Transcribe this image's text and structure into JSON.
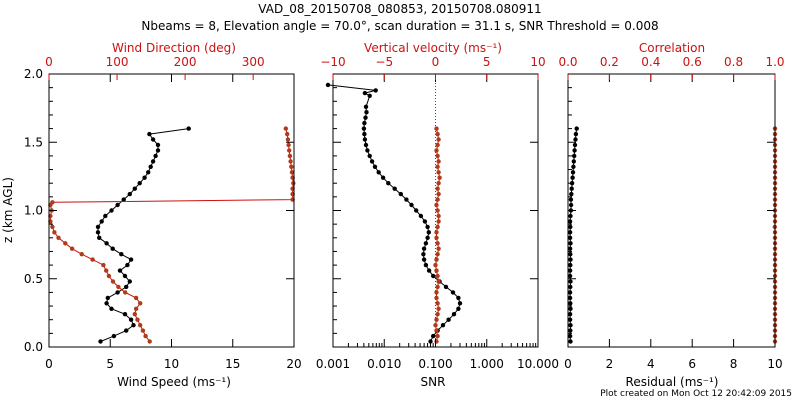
{
  "title": {
    "line1": "VAD_08_20150708_080853, 20150708.080911",
    "line2": "Nbeams = 8, Elevation angle = 70.0°, scan duration = 31.1 s, SNR Threshold = 0.008"
  },
  "footer": "Plot created on Mon Oct 12 20:42:09 2015",
  "colors": {
    "black": "#000000",
    "red": "#cc1111",
    "brown": "#b03a1a"
  },
  "chart_data": [
    {
      "type": "line",
      "panel": "wind",
      "ylabel": "z (km AGL)",
      "ylim": [
        0,
        2
      ],
      "yticks": [
        "0.0",
        "0.5",
        "1.0",
        "1.5",
        "2.0"
      ],
      "xlabel": "Wind Speed (ms⁻¹)",
      "xlim": [
        0,
        20
      ],
      "xticks": [
        "0",
        "5",
        "10",
        "15",
        "20"
      ],
      "top_label": "Wind Direction (deg)",
      "top_lim": [
        0,
        360
      ],
      "top_ticks": [
        "0",
        "100",
        "200",
        "300"
      ],
      "series": [
        {
          "name": "Wind Speed",
          "color": "#000000",
          "z": [
            0.04,
            0.08,
            0.12,
            0.16,
            0.2,
            0.24,
            0.28,
            0.32,
            0.36,
            0.4,
            0.44,
            0.48,
            0.52,
            0.56,
            0.6,
            0.64,
            0.68,
            0.72,
            0.76,
            0.8,
            0.84,
            0.88,
            0.92,
            0.96,
            1.0,
            1.04,
            1.08,
            1.12,
            1.16,
            1.2,
            1.24,
            1.28,
            1.32,
            1.36,
            1.4,
            1.44,
            1.48,
            1.52,
            1.56,
            1.6
          ],
          "values": [
            4.2,
            5.3,
            6.3,
            6.9,
            6.7,
            6.2,
            5.1,
            4.7,
            4.8,
            5.6,
            6.3,
            6.6,
            6.2,
            5.8,
            6.4,
            6.7,
            5.9,
            5.2,
            4.7,
            4.1,
            4.0,
            4.0,
            4.3,
            4.6,
            5.1,
            5.6,
            6.1,
            6.6,
            7.0,
            7.4,
            7.8,
            8.1,
            8.3,
            8.5,
            8.7,
            8.9,
            8.9,
            8.5,
            8.2,
            11.4
          ]
        },
        {
          "name": "Wind Direction",
          "color": "#b03a1a",
          "z": [
            0.04,
            0.08,
            0.12,
            0.16,
            0.2,
            0.24,
            0.28,
            0.32,
            0.36,
            0.4,
            0.44,
            0.48,
            0.52,
            0.56,
            0.6,
            0.64,
            0.68,
            0.72,
            0.76,
            0.8,
            0.84,
            0.88,
            0.92,
            0.96,
            1.0,
            1.04,
            1.06,
            1.08,
            1.12,
            1.16,
            1.2,
            1.24,
            1.28,
            1.32,
            1.36,
            1.4,
            1.44,
            1.48,
            1.52,
            1.56,
            1.6
          ],
          "values": [
            148,
            142,
            138,
            134,
            130,
            126,
            128,
            134,
            128,
            112,
            102,
            94,
            88,
            84,
            80,
            64,
            48,
            34,
            24,
            14,
            8,
            5,
            2,
            2,
            4,
            2,
            5,
            358,
            358,
            358,
            359,
            358,
            357,
            356,
            355,
            354,
            353,
            352,
            351,
            350,
            348
          ]
        }
      ]
    },
    {
      "type": "line",
      "panel": "vertical",
      "xlabel": "SNR",
      "xscale": "log",
      "xlim": [
        0.001,
        10
      ],
      "xticks": [
        "0.001",
        "0.010",
        "0.100",
        "1.000",
        "10.000"
      ],
      "top_label": "Vertical velocity (ms⁻¹)",
      "top_lim": [
        -10,
        10
      ],
      "top_ticks": [
        "−10",
        "−5",
        "0",
        "5",
        "10"
      ],
      "series": [
        {
          "name": "SNR",
          "color": "#000000",
          "z": [
            0.04,
            0.08,
            0.12,
            0.16,
            0.2,
            0.24,
            0.28,
            0.32,
            0.36,
            0.4,
            0.44,
            0.48,
            0.52,
            0.56,
            0.6,
            0.64,
            0.68,
            0.72,
            0.76,
            0.8,
            0.84,
            0.88,
            0.92,
            0.96,
            1.0,
            1.04,
            1.08,
            1.12,
            1.16,
            1.2,
            1.24,
            1.28,
            1.32,
            1.36,
            1.4,
            1.44,
            1.48,
            1.52,
            1.56,
            1.6,
            1.64,
            1.68,
            1.72,
            1.76,
            1.84,
            1.86,
            1.88,
            1.92
          ],
          "values": [
            0.08,
            0.09,
            0.11,
            0.14,
            0.18,
            0.23,
            0.28,
            0.3,
            0.28,
            0.22,
            0.16,
            0.12,
            0.09,
            0.075,
            0.065,
            0.06,
            0.058,
            0.06,
            0.065,
            0.07,
            0.074,
            0.07,
            0.062,
            0.052,
            0.042,
            0.034,
            0.027,
            0.021,
            0.016,
            0.012,
            0.0095,
            0.0078,
            0.0066,
            0.0058,
            0.0052,
            0.0047,
            0.0044,
            0.0042,
            0.0041,
            0.004,
            0.0041,
            0.0043,
            0.0045,
            0.0044,
            0.0052,
            0.0042,
            0.0068,
            0.0008
          ]
        },
        {
          "name": "Vertical velocity",
          "color": "#b03a1a",
          "z": [
            0.04,
            0.08,
            0.12,
            0.16,
            0.2,
            0.24,
            0.28,
            0.32,
            0.36,
            0.4,
            0.44,
            0.48,
            0.52,
            0.56,
            0.6,
            0.64,
            0.68,
            0.72,
            0.76,
            0.8,
            0.84,
            0.88,
            0.92,
            0.96,
            1.0,
            1.04,
            1.08,
            1.12,
            1.16,
            1.2,
            1.24,
            1.28,
            1.32,
            1.36,
            1.4,
            1.44,
            1.48,
            1.52,
            1.56,
            1.6
          ],
          "values": [
            0.1,
            0.2,
            0.1,
            0.0,
            0.1,
            0.2,
            0.3,
            0.2,
            0.1,
            0.1,
            0.2,
            0.3,
            0.2,
            0.1,
            0.0,
            0.1,
            0.2,
            0.3,
            0.2,
            0.1,
            0.1,
            0.2,
            0.3,
            0.3,
            0.2,
            0.1,
            0.2,
            0.3,
            0.2,
            0.3,
            0.4,
            0.3,
            0.2,
            0.3,
            0.2,
            0.1,
            0.2,
            0.3,
            0.2,
            0.1
          ]
        }
      ]
    },
    {
      "type": "line",
      "panel": "quality",
      "xlabel": "Residual (ms⁻¹)",
      "xlim": [
        0,
        10
      ],
      "xticks": [
        "0",
        "2",
        "4",
        "6",
        "8",
        "10"
      ],
      "top_label": "Correlation",
      "top_lim": [
        0,
        1
      ],
      "top_ticks": [
        "0.0",
        "0.2",
        "0.4",
        "0.6",
        "0.8",
        "1.0"
      ],
      "series": [
        {
          "name": "Residual",
          "color": "#000000",
          "z": [
            0.04,
            0.08,
            0.12,
            0.16,
            0.2,
            0.24,
            0.28,
            0.32,
            0.36,
            0.4,
            0.44,
            0.48,
            0.52,
            0.56,
            0.6,
            0.64,
            0.68,
            0.72,
            0.76,
            0.8,
            0.84,
            0.88,
            0.92,
            0.96,
            1.0,
            1.04,
            1.08,
            1.12,
            1.16,
            1.2,
            1.24,
            1.28,
            1.32,
            1.36,
            1.4,
            1.44,
            1.48,
            1.52,
            1.56,
            1.6
          ],
          "values": [
            0.12,
            0.1,
            0.11,
            0.12,
            0.1,
            0.1,
            0.12,
            0.11,
            0.1,
            0.1,
            0.11,
            0.12,
            0.1,
            0.1,
            0.11,
            0.12,
            0.11,
            0.1,
            0.12,
            0.1,
            0.1,
            0.11,
            0.1,
            0.12,
            0.14,
            0.15,
            0.14,
            0.16,
            0.18,
            0.2,
            0.22,
            0.24,
            0.26,
            0.28,
            0.3,
            0.32,
            0.34,
            0.36,
            0.38,
            0.42
          ]
        },
        {
          "name": "Correlation",
          "color": "#b03a1a",
          "z": [
            0.04,
            0.08,
            0.12,
            0.16,
            0.2,
            0.24,
            0.28,
            0.32,
            0.36,
            0.4,
            0.44,
            0.48,
            0.52,
            0.56,
            0.6,
            0.64,
            0.68,
            0.72,
            0.76,
            0.8,
            0.84,
            0.88,
            0.92,
            0.96,
            1.0,
            1.04,
            1.08,
            1.12,
            1.16,
            1.2,
            1.24,
            1.28,
            1.32,
            1.36,
            1.4,
            1.44,
            1.48,
            1.52,
            1.56,
            1.6
          ],
          "values": [
            1.0,
            1.0,
            1.0,
            1.0,
            1.0,
            1.0,
            1.0,
            1.0,
            1.0,
            1.0,
            1.0,
            1.0,
            1.0,
            1.0,
            1.0,
            1.0,
            1.0,
            1.0,
            1.0,
            1.0,
            1.0,
            0.999,
            1.0,
            1.0,
            1.0,
            1.0,
            1.0,
            1.0,
            1.0,
            1.0,
            1.0,
            1.0,
            1.0,
            1.0,
            1.0,
            1.0,
            1.0,
            1.0,
            1.0,
            1.0
          ]
        }
      ]
    }
  ]
}
